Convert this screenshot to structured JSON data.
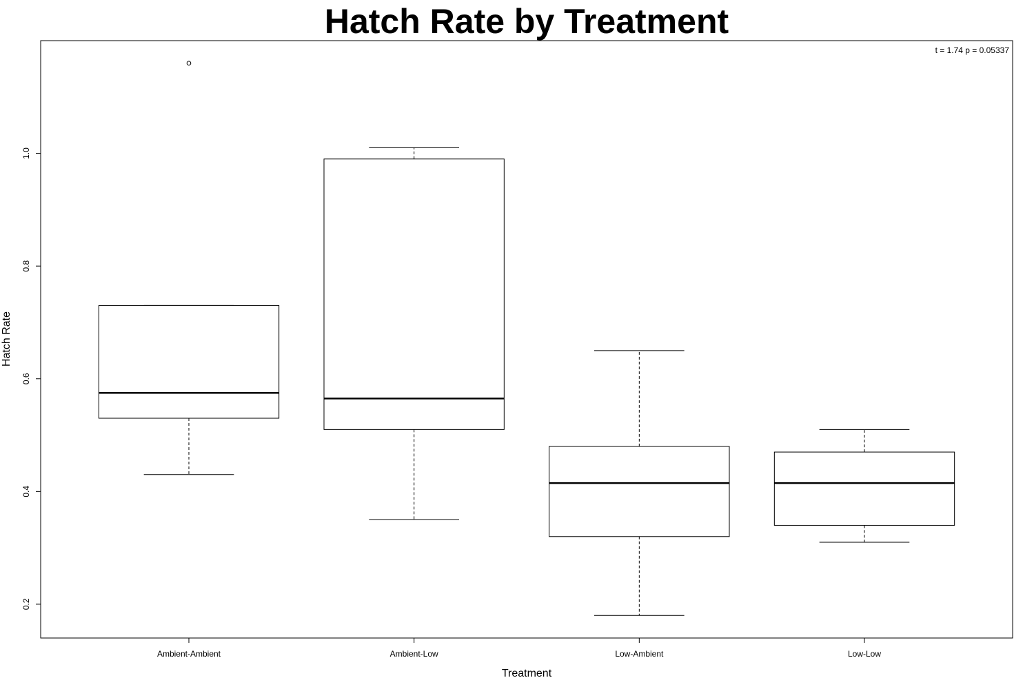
{
  "chart_data": {
    "type": "box",
    "title": "Hatch Rate by Treatment",
    "xlabel": "Treatment",
    "ylabel": "Hatch Rate",
    "annotation": "t = 1.74 p = 0.05337",
    "ylim": [
      0.14,
      1.2
    ],
    "yticks": [
      0.2,
      0.4,
      0.6,
      0.8,
      1.0
    ],
    "ytick_labels": [
      "0.2",
      "0.4",
      "0.6",
      "0.8",
      "1.0"
    ],
    "grid": false,
    "colors": {
      "box_fill": "#ffffff",
      "stroke": "#000000"
    },
    "groups": [
      {
        "label": "Ambient-Ambient",
        "whisker_low": 0.43,
        "q1": 0.53,
        "median": 0.575,
        "q3": 0.73,
        "whisker_high": 0.73,
        "outliers": [
          1.16
        ]
      },
      {
        "label": "Ambient-Low",
        "whisker_low": 0.35,
        "q1": 0.51,
        "median": 0.565,
        "q3": 0.99,
        "whisker_high": 1.01,
        "outliers": []
      },
      {
        "label": "Low-Ambient",
        "whisker_low": 0.18,
        "q1": 0.32,
        "median": 0.415,
        "q3": 0.48,
        "whisker_high": 0.65,
        "outliers": []
      },
      {
        "label": "Low-Low",
        "whisker_low": 0.31,
        "q1": 0.34,
        "median": 0.415,
        "q3": 0.47,
        "whisker_high": 0.51,
        "outliers": []
      }
    ]
  }
}
